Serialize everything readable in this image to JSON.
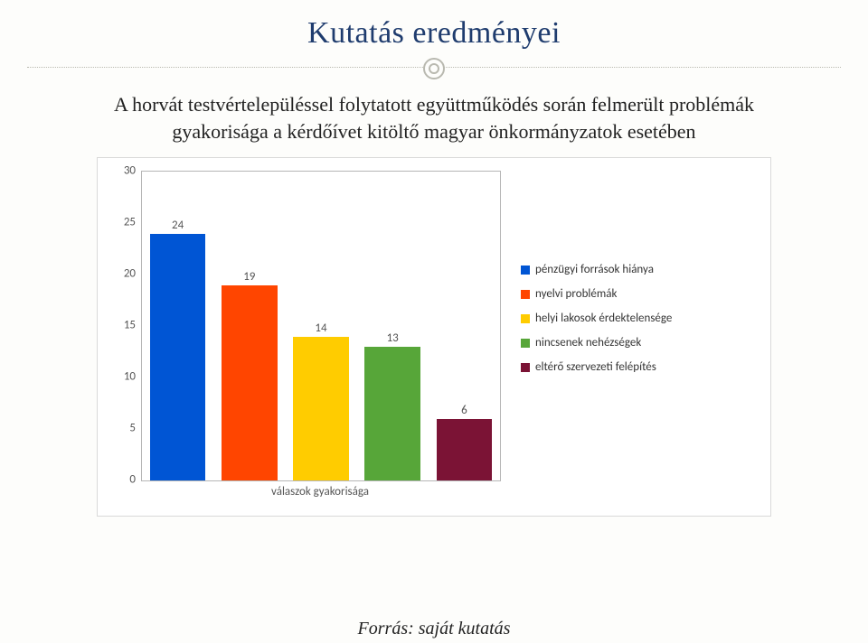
{
  "title": "Kutatás eredményei",
  "subtitle": "A horvát testvértelepüléssel folytatott együttműködés során felmerült problémák gyakorisága a kérdőívet kitöltő magyar önkormányzatok esetében",
  "footer": "Forrás: saját kutatás",
  "chart": {
    "type": "bar",
    "xaxis_title": "válaszok gyakorisága",
    "background_color": "#ffffff",
    "border_color": "#d9d9d9",
    "axis_line_color": "#b6b6b6",
    "label_fontsize": 13,
    "label_color": "#555555",
    "ylim": [
      0,
      30
    ],
    "ytick_step": 5,
    "yticks": [
      0,
      5,
      10,
      15,
      20,
      25,
      30
    ],
    "bar_label_fontsize": 13,
    "series": [
      {
        "label": "pénzügyi források hiánya",
        "value": 24,
        "color": "#0055d4"
      },
      {
        "label": "nyelvi problémák",
        "value": 19,
        "color": "#ff4500"
      },
      {
        "label": "helyi lakosok érdektelensége",
        "value": 14,
        "color": "#ffcc00"
      },
      {
        "label": "nincsenek nehézségek",
        "value": 13,
        "color": "#57a639"
      },
      {
        "label": "eltérő szervezeti felépítés",
        "value": 6,
        "color": "#7b1335"
      }
    ]
  }
}
